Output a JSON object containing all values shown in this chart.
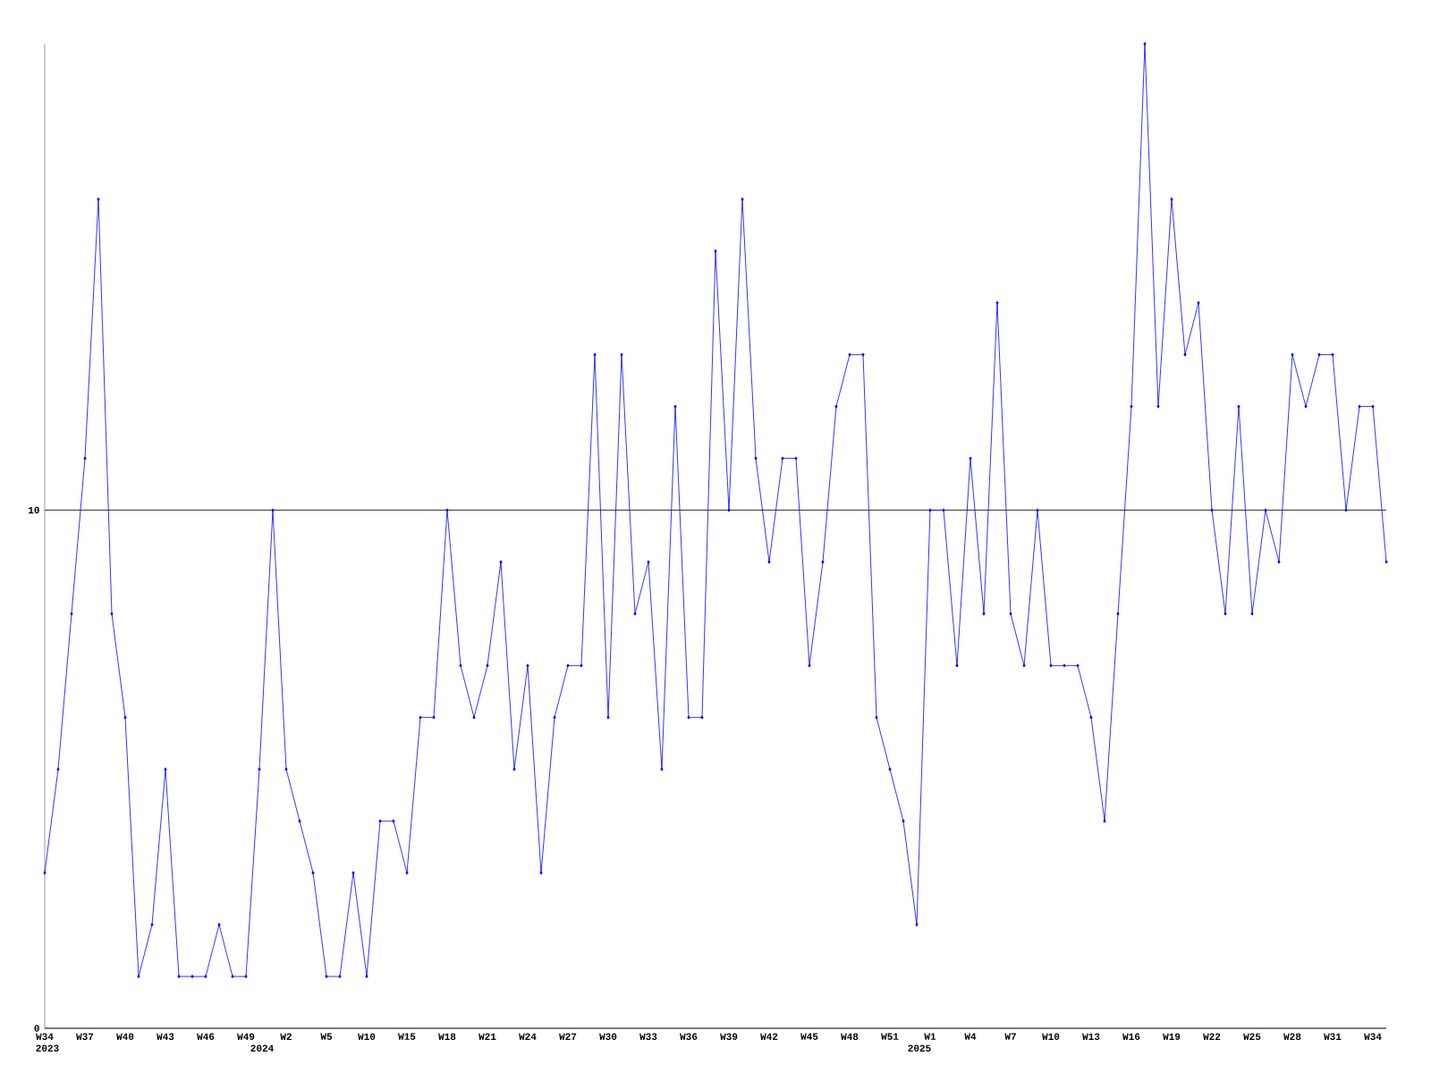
{
  "chart_data": {
    "type": "line",
    "color": "#0000ff",
    "marker": "diamond",
    "grid": "y",
    "categories": [
      "W34",
      null,
      null,
      "W37",
      null,
      null,
      "W40",
      null,
      null,
      "W43",
      null,
      null,
      "W46",
      null,
      null,
      "W49",
      null,
      null,
      "W2",
      null,
      null,
      "W5",
      null,
      null,
      "W10",
      null,
      null,
      "W15",
      null,
      null,
      "W18",
      null,
      null,
      "W21",
      null,
      null,
      "W24",
      null,
      null,
      "W27",
      null,
      null,
      "W30",
      null,
      null,
      "W33",
      null,
      null,
      "W36",
      null,
      null,
      "W39",
      null,
      null,
      "W42",
      null,
      null,
      "W45",
      null,
      null,
      "W48",
      null,
      null,
      "W51",
      null,
      null,
      "W1",
      null,
      null,
      "W4",
      null,
      null,
      "W7",
      null,
      null,
      "W10",
      null,
      null,
      "W13",
      null,
      null,
      "W16",
      null,
      null,
      "W19",
      null,
      null,
      "W22",
      null,
      null,
      "W25",
      null,
      null,
      "W28",
      null,
      null,
      "W31",
      null,
      null,
      "W34",
      null
    ],
    "values": [
      3,
      5,
      8,
      11,
      16,
      8,
      6,
      1,
      2,
      5,
      1,
      1,
      1,
      2,
      1,
      1,
      5,
      10,
      5,
      4,
      3,
      1,
      1,
      3,
      1,
      4,
      4,
      3,
      6,
      6,
      10,
      7,
      6,
      7,
      9,
      5,
      7,
      3,
      6,
      7,
      7,
      13,
      6,
      13,
      8,
      9,
      5,
      12,
      6,
      6,
      15,
      10,
      16,
      11,
      9,
      11,
      11,
      7,
      9,
      12,
      13,
      13,
      6,
      5,
      4,
      2,
      10,
      10,
      7,
      11,
      8,
      14,
      8,
      7,
      10,
      7,
      7,
      7,
      6,
      4,
      8,
      12,
      19,
      12,
      16,
      13,
      14,
      10,
      8,
      12,
      8,
      10,
      9,
      13,
      12,
      13,
      13,
      10,
      12,
      12,
      9
    ],
    "ylim": [
      0,
      19
    ],
    "yticks": [
      0,
      10
    ],
    "annotations": [
      "2023",
      "2024",
      "2025"
    ]
  }
}
